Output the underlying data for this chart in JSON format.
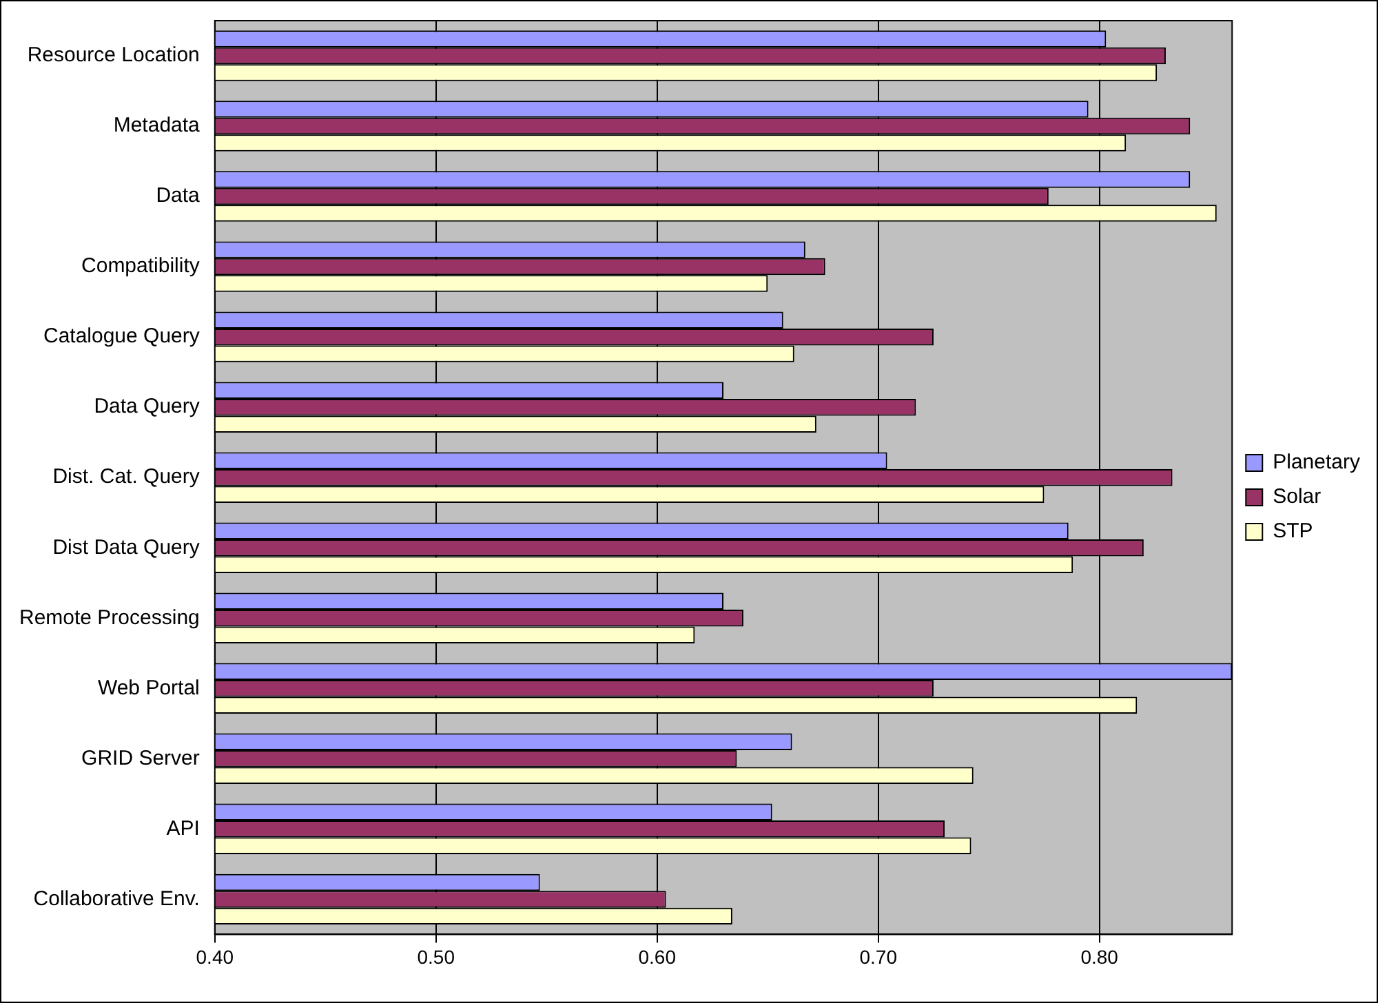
{
  "chart_data": {
    "type": "bar",
    "orientation": "horizontal",
    "categories": [
      "Resource Location",
      "Metadata",
      "Data",
      "Compatibility",
      "Catalogue Query",
      "Data Query",
      "Dist. Cat. Query",
      "Dist Data Query",
      "Remote Processing",
      "Web Portal",
      "GRID Server",
      "API",
      "Collaborative Env."
    ],
    "series": [
      {
        "name": "Planetary",
        "color": "#9999ff",
        "values": [
          0.803,
          0.795,
          0.841,
          0.667,
          0.657,
          0.63,
          0.704,
          0.786,
          0.63,
          0.86,
          0.661,
          0.652,
          0.547
        ]
      },
      {
        "name": "Solar",
        "color": "#993366",
        "values": [
          0.83,
          0.841,
          0.777,
          0.676,
          0.725,
          0.717,
          0.833,
          0.82,
          0.639,
          0.725,
          0.636,
          0.73,
          0.604
        ]
      },
      {
        "name": "STP",
        "color": "#ffffcc",
        "values": [
          0.826,
          0.812,
          0.853,
          0.65,
          0.662,
          0.672,
          0.775,
          0.788,
          0.617,
          0.817,
          0.743,
          0.742,
          0.634
        ]
      }
    ],
    "xlim": [
      0.4,
      0.86
    ],
    "xticks": [
      {
        "value": 0.4,
        "label": "0.40"
      },
      {
        "value": 0.5,
        "label": "0.50"
      },
      {
        "value": 0.6,
        "label": "0.60"
      },
      {
        "value": 0.7,
        "label": "0.70"
      },
      {
        "value": 0.8,
        "label": "0.80"
      }
    ],
    "grid": "x",
    "legend": "right"
  }
}
